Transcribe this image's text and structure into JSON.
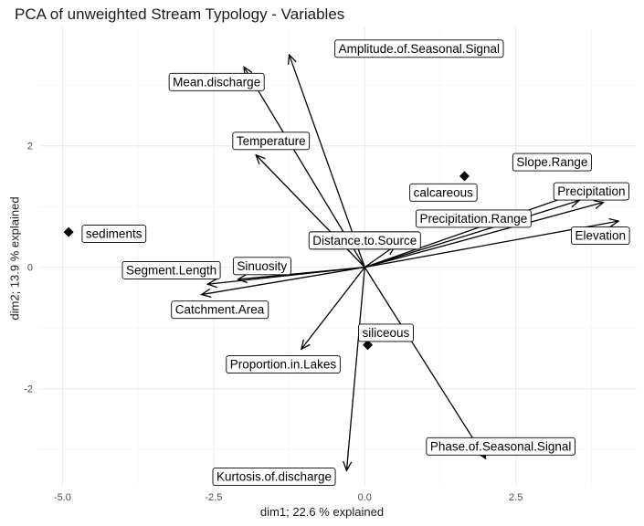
{
  "chart_data": {
    "type": "biplot",
    "title": "PCA of unweighted Stream Typology - Variables",
    "xlabel": "dim1; 22.6 % explained",
    "ylabel": "dim2; 13.9 % explained",
    "xlim": [
      -5.4,
      4.5
    ],
    "ylim": [
      -3.6,
      3.95
    ],
    "xticks": [
      -5.0,
      -2.5,
      0.0,
      2.5
    ],
    "xtick_labels": [
      "-5.0",
      "-2.5",
      "0.0",
      "2.5"
    ],
    "yticks": [
      -2,
      0,
      2
    ],
    "ytick_labels": [
      "-2",
      "0",
      "2"
    ],
    "grid": true,
    "origin": [
      0,
      0
    ],
    "variables": [
      {
        "name": "Amplitude.of.Seasonal.Signal",
        "x": -1.25,
        "y": 3.5,
        "label_x": 0.9,
        "label_y": 3.6
      },
      {
        "name": "Mean.discharge",
        "x": -2.0,
        "y": 3.3,
        "label_x": -2.45,
        "label_y": 3.05
      },
      {
        "name": "Temperature",
        "x": -1.8,
        "y": 1.85,
        "label_x": -1.55,
        "label_y": 2.08
      },
      {
        "name": "Slope.Range",
        "x": 3.6,
        "y": 1.25,
        "label_x": 3.1,
        "label_y": 1.73
      },
      {
        "name": "Precipitation",
        "x": 3.95,
        "y": 1.07,
        "label_x": 3.75,
        "label_y": 1.25
      },
      {
        "name": "Precipitation.Range",
        "x": 3.55,
        "y": 1.1,
        "label_x": 1.8,
        "label_y": 0.8
      },
      {
        "name": "Elevation",
        "x": 4.2,
        "y": 0.76,
        "label_x": 3.9,
        "label_y": 0.52
      },
      {
        "name": "Distance.to.Source",
        "x": 0.5,
        "y": 0.35,
        "label_x": 0.0,
        "label_y": 0.44
      },
      {
        "name": "Sinuosity",
        "x": -2.1,
        "y": -0.2,
        "label_x": -1.7,
        "label_y": 0.02
      },
      {
        "name": "Segment.Length",
        "x": -2.6,
        "y": -0.28,
        "label_x": -3.2,
        "label_y": -0.05
      },
      {
        "name": "Catchment.Area",
        "x": -2.7,
        "y": -0.45,
        "label_x": -2.4,
        "label_y": -0.7
      },
      {
        "name": "Proportion.in.Lakes",
        "x": -1.05,
        "y": -1.35,
        "label_x": -1.35,
        "label_y": -1.6
      },
      {
        "name": "Phase.of.Seasonal.Signal",
        "x": 2.0,
        "y": -3.15,
        "label_x": 2.25,
        "label_y": -2.95
      },
      {
        "name": "Kurtosis.of.discharge",
        "x": -0.3,
        "y": -3.35,
        "label_x": -1.5,
        "label_y": -3.45
      }
    ],
    "supplementary_points": [
      {
        "name": "sediments",
        "x": -4.9,
        "y": 0.58,
        "label_x": -4.15,
        "label_y": 0.55
      },
      {
        "name": "calcareous",
        "x": 1.65,
        "y": 1.5,
        "label_x": 1.3,
        "label_y": 1.23
      },
      {
        "name": "siliceous",
        "x": 0.05,
        "y": -1.28,
        "label_x": 0.35,
        "label_y": -1.08
      }
    ]
  }
}
